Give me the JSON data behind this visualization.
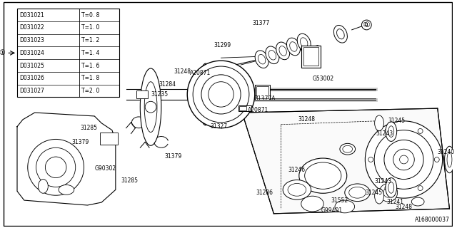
{
  "background_color": "#ffffff",
  "diagram_id": "A168000037",
  "table_rows": [
    [
      "D031021",
      "T=0. 8"
    ],
    [
      "D031022",
      "T=1. 0"
    ],
    [
      "D031023",
      "T=1. 2"
    ],
    [
      "D031024",
      "T=1. 4"
    ],
    [
      "D031025",
      "T=1. 6"
    ],
    [
      "D031026",
      "T=1. 8"
    ],
    [
      "D031027",
      "T=2. 0"
    ]
  ],
  "lfs": 5.5
}
